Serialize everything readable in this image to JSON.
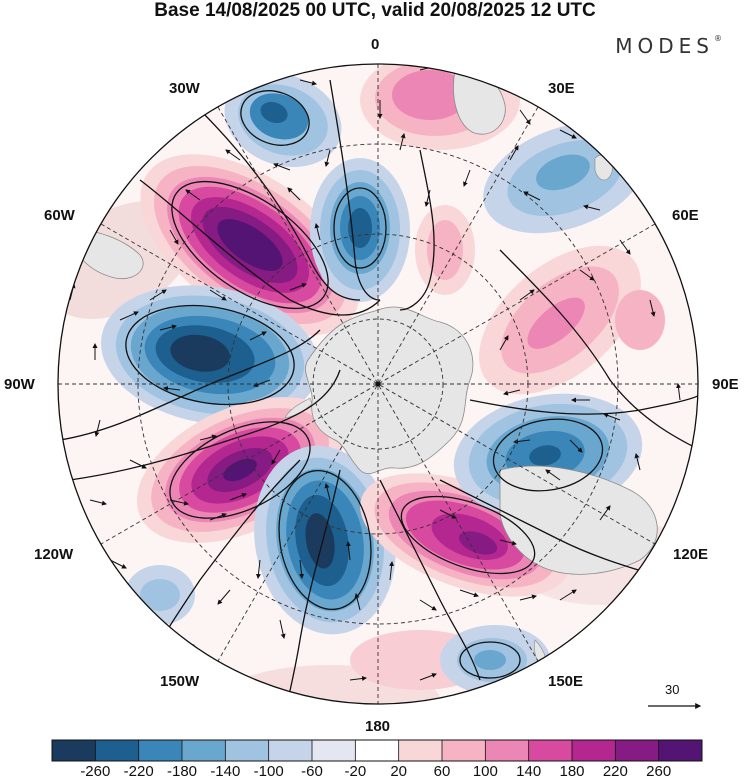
{
  "title": "Base 14/08/2025 00 UTC, valid 20/08/2025 12 UTC",
  "brand": {
    "name": "MODES",
    "mark": "®"
  },
  "longitude_labels": [
    "0",
    "30E",
    "60E",
    "90E",
    "120E",
    "150E",
    "180",
    "150W",
    "120W",
    "90W",
    "60W",
    "30W"
  ],
  "reference_vector": {
    "label": "30"
  },
  "colorbar": {
    "ticks": [
      "-260",
      "-220",
      "-180",
      "-140",
      "-100",
      "-60",
      "-20",
      "20",
      "60",
      "100",
      "140",
      "180",
      "220",
      "260"
    ],
    "colors": [
      "#1b3b5e",
      "#1d5f8f",
      "#3a86b8",
      "#6aa7cf",
      "#9fc3e0",
      "#c6d4ea",
      "#e4e6f2",
      "#ffffff",
      "#f9d6d8",
      "#f6b3c4",
      "#ec86b4",
      "#d74aa0",
      "#b42690",
      "#851b83",
      "#531473"
    ]
  },
  "palette": {
    "land": "#e6e6e6",
    "coast": "#8a8a8a",
    "grid": "#333333",
    "contour": "#111111"
  }
}
